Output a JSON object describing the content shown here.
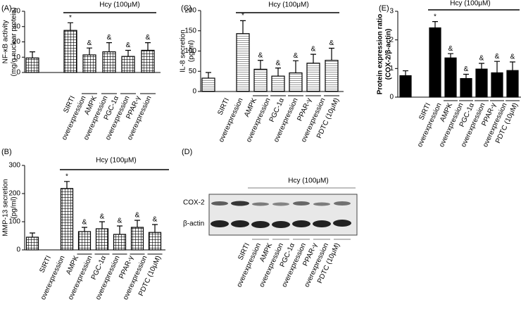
{
  "chart_data": [
    {
      "type": "bar",
      "panel": "(A)",
      "ylabel": [
        "NF-κB activity",
        "(mg/g nuclear protein)"
      ],
      "treatment": "Hcy (100μM)",
      "values": [
        9.5,
        27.5,
        11.5,
        13.5,
        10.5,
        14.5
      ],
      "errors": [
        4,
        5,
        4.5,
        6,
        4,
        5
      ],
      "annotations": [
        null,
        "*",
        "&",
        "&",
        "&",
        "&"
      ],
      "x_labels": [
        "SIRTI",
        "overexpression",
        "AMPK",
        "overexpression",
        "PGC-1α",
        "overexpression",
        "PPAR-γ",
        "overexpression"
      ],
      "color": "#000000",
      "pattern": "grid",
      "ylim": [
        0,
        40
      ],
      "yticks": [
        0,
        10,
        20,
        30,
        40
      ]
    },
    {
      "type": "bar",
      "panel": "(B)",
      "ylabel": [
        "MMP-13 secretion",
        "(pg/ml)"
      ],
      "treatment": "Hcy (100μM)",
      "values": [
        45,
        218,
        65,
        75,
        55,
        80,
        62
      ],
      "errors": [
        15,
        25,
        15,
        25,
        30,
        25,
        28
      ],
      "annotations": [
        null,
        "*",
        "&",
        "&",
        "&",
        "&",
        "&"
      ],
      "x_labels": [
        "SIRTI",
        "overexpression",
        "AMPK",
        "overexpression",
        "PGC-1α",
        "overexpression",
        "PPAR-γ",
        "overexpression",
        "PDTC (10μM)"
      ],
      "color": "#000000",
      "pattern": "grid",
      "ylim": [
        0,
        300
      ],
      "yticks": [
        0,
        100,
        200,
        300
      ]
    },
    {
      "type": "bar",
      "panel": "(C)",
      "ylabel": [
        "IL-8 secretion",
        "(pg/ml)"
      ],
      "treatment": "Hcy (100μM)",
      "values": [
        33,
        143,
        55,
        38,
        46,
        70,
        77
      ],
      "errors": [
        14,
        32,
        22,
        20,
        30,
        22,
        30
      ],
      "annotations": [
        null,
        "*",
        "&",
        "&",
        "&",
        "&",
        "&"
      ],
      "x_labels": [
        "SIRTI",
        "overexpression",
        "AMPK",
        "overexpression",
        "PGC-1α",
        "overexpression",
        "PPAR-γ",
        "overexpression",
        "PDTC (10μM)"
      ],
      "color": "#000000",
      "pattern": "hlines",
      "ylim": [
        0,
        200
      ],
      "yticks": [
        0,
        50,
        100,
        150,
        200
      ]
    },
    {
      "type": "bar",
      "panel": "(E)",
      "ylabel": [
        "Protein expression ratio",
        "(COX-2/β-actin)"
      ],
      "treatment": "Hcy (100μM)",
      "values": [
        0.75,
        2.42,
        1.37,
        0.65,
        0.98,
        0.85,
        0.93
      ],
      "errors": [
        0.17,
        0.22,
        0.15,
        0.15,
        0.2,
        0.4,
        0.3
      ],
      "annotations": [
        null,
        "*",
        "&",
        "&",
        "&",
        "&",
        "&"
      ],
      "x_labels": [
        "SIRTI",
        "overexpression",
        "AMPK",
        "overexpression",
        "PGC-1α",
        "overexpression",
        "PPAR-γ",
        "overexpression",
        "PDTC (10μM)"
      ],
      "color": "#000000",
      "pattern": "solid",
      "ylim": [
        0,
        3
      ],
      "yticks": [
        0,
        1,
        2,
        3
      ]
    }
  ],
  "blot": {
    "panel": "(D)",
    "treatment": "Hcy (100μM)",
    "rows": [
      "COX-2",
      "β-actin"
    ],
    "x_labels": [
      "SIRTI",
      "overexpression",
      "AMPK",
      "overexpression",
      "PGC-1α",
      "overexpression",
      "PPAR-γ",
      "overexpression",
      "PDTC (10μM)"
    ]
  }
}
